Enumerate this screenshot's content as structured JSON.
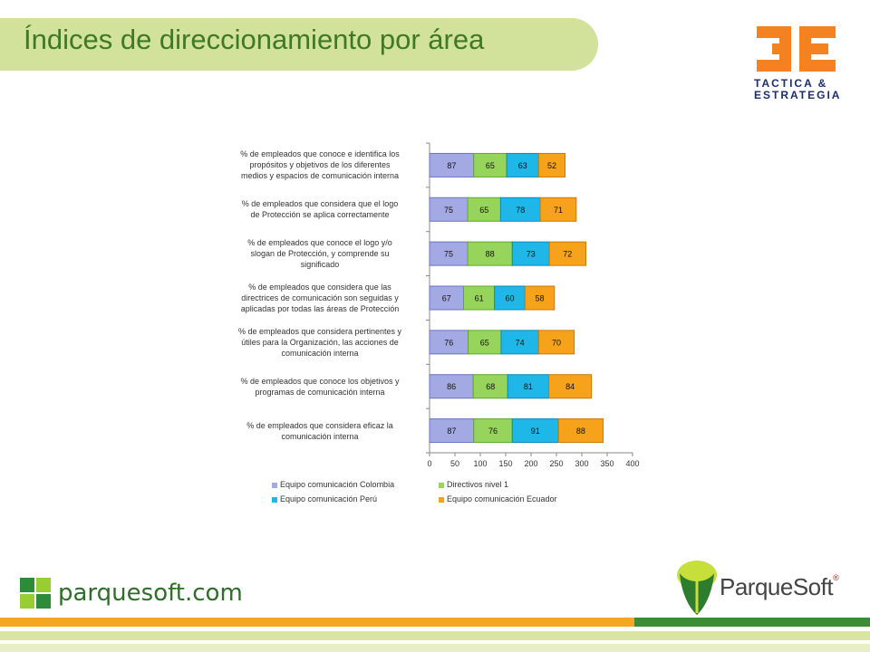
{
  "header": {
    "title": "Índices de direccionamiento por área"
  },
  "logo_3e": {
    "line1": "TACTICA &",
    "line2": "ESTRATEGIA"
  },
  "footer": {
    "site": "parquesoft.com",
    "brand": "ParqueSoft",
    "reg": "®"
  },
  "colors": {
    "colombia": "#a3a9e3",
    "directivos": "#96d45c",
    "peru": "#1fb7e8",
    "ecuador": "#f7a21b"
  },
  "chart_data": {
    "type": "bar",
    "orientation": "horizontal",
    "stacked": true,
    "categories": [
      "% de empleados que conoce e identifica los propósitos y objetivos de los diferentes medios y espacios de comunicación interna",
      "% de empleados que considera que el logo de Protección se aplica correctamente",
      "% de empleados que conoce el logo y/o slogan de Protección, y comprende su significado",
      "% de empleados que considera que las directrices de comunicación son seguidas y aplicadas por todas las áreas de Protección",
      "% de empleados que considera pertinentes y útiles para la Organización, las acciones de comunicación interna",
      "% de empleados que conoce los objetivos y programas de comunicación interna",
      "% de empleados que considera eficaz la comunicación interna"
    ],
    "category_lines": [
      [
        "% de empleados que conoce e identifica los",
        "propósitos y objetivos de los diferentes",
        "medios y espacios de comunicación interna"
      ],
      [
        "% de empleados que considera que el logo",
        "de Protección se aplica correctamente"
      ],
      [
        "% de empleados que conoce el logo y/o",
        "slogan de Protección, y comprende su",
        "significado"
      ],
      [
        "% de empleados que considera que las",
        "directrices de comunicación son seguidas y",
        "aplicadas por todas las áreas de Protección"
      ],
      [
        "% de empleados que considera pertinentes y",
        "útiles para la Organización, las acciones de",
        "comunicación interna"
      ],
      [
        "% de empleados que conoce los objetivos y",
        "programas de comunicación interna"
      ],
      [
        "% de empleados que considera eficaz la",
        "comunicación interna"
      ]
    ],
    "series": [
      {
        "name": "Equipo comunicación Colombia",
        "values": [
          87,
          75,
          75,
          67,
          76,
          86,
          87
        ]
      },
      {
        "name": "Directivos nivel 1",
        "values": [
          65,
          65,
          88,
          61,
          65,
          68,
          76
        ]
      },
      {
        "name": "Equipo comunicación Perú",
        "values": [
          63,
          78,
          73,
          60,
          74,
          81,
          91
        ]
      },
      {
        "name": "Equipo comunicación Ecuador",
        "values": [
          52,
          71,
          72,
          58,
          70,
          84,
          88
        ]
      }
    ],
    "xlim": [
      0,
      400
    ],
    "xticks": [
      0,
      50,
      100,
      150,
      200,
      250,
      300,
      350,
      400
    ],
    "grid": false,
    "legend_position": "bottom"
  }
}
